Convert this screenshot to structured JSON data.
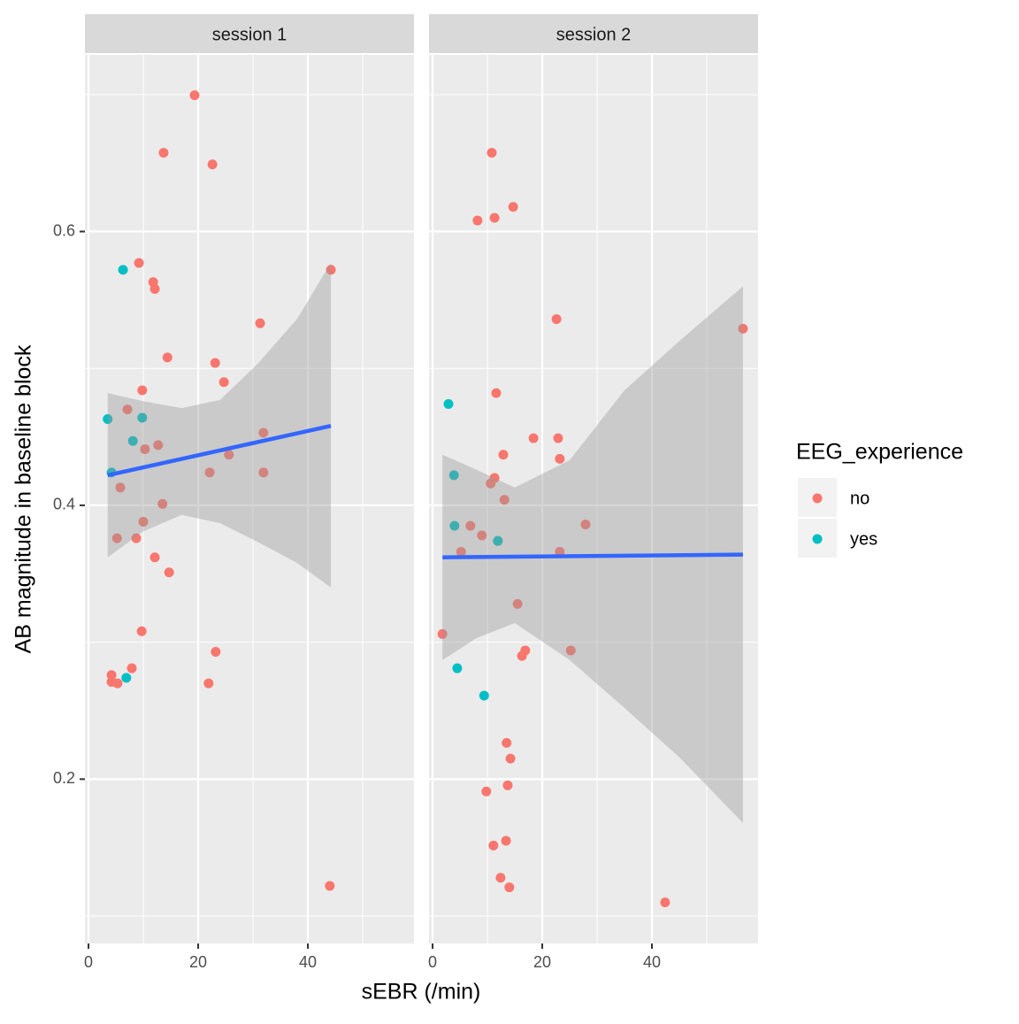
{
  "chart_data": {
    "type": "scatter",
    "x_label": "sEBR (/min)",
    "y_label": "AB magnitude in baseline block",
    "legend_title": "EEG_experience",
    "legend_position": "right",
    "groups": [
      {
        "name": "no",
        "color": "#F8766D"
      },
      {
        "name": "yes",
        "color": "#00BFC4"
      }
    ],
    "fit_color": "#3366FF",
    "xlim": [
      -0.65,
      59.35
    ],
    "ylim": [
      0.08,
      0.729
    ],
    "xticks": [
      0,
      20,
      40
    ],
    "yticks": [
      0.2,
      0.4,
      0.6
    ],
    "minor_xticks": [
      10,
      30,
      50
    ],
    "minor_yticks": [
      0.1,
      0.3,
      0.5,
      0.7
    ],
    "grid": true,
    "facets": [
      {
        "title": "session 1",
        "series": [
          {
            "x": [
              19.35,
              13.7,
              22.6,
              9.2,
              11.8,
              12.1,
              44.2,
              31.3,
              14.4,
              23.1,
              24.7,
              9.8,
              7.1,
              31.9,
              12.7,
              10.3,
              25.6,
              22.1,
              31.9,
              5.8,
              13.5,
              10.0,
              5.2,
              8.7,
              12.1,
              14.7,
              9.7,
              23.2,
              7.9,
              4.2,
              4.2,
              5.3,
              21.9,
              44.0
            ],
            "values": [
              0.6995,
              0.6575,
              0.649,
              0.577,
              0.563,
              0.558,
              0.572,
              0.533,
              0.508,
              0.504,
              0.49,
              0.484,
              0.47,
              0.453,
              0.444,
              0.441,
              0.437,
              0.424,
              0.424,
              0.413,
              0.401,
              0.388,
              0.376,
              0.376,
              0.362,
              0.351,
              0.308,
              0.293,
              0.281,
              0.276,
              0.271,
              0.27,
              0.27,
              0.122
            ]
          },
          {
            "x": [
              6.3,
              3.5,
              9.8,
              8.1,
              4.2,
              6.9
            ],
            "values": [
              0.572,
              0.463,
              0.464,
              0.447,
              0.424,
              0.274
            ]
          }
        ],
        "fit": {
          "x": [
            3.5,
            44.2
          ],
          "values": [
            0.422,
            0.458
          ]
        },
        "band": {
          "x": [
            3.5,
            10,
            17,
            24,
            31,
            38,
            44.2
          ],
          "upper": [
            0.482,
            0.476,
            0.471,
            0.477,
            0.504,
            0.536,
            0.577
          ],
          "lower": [
            0.362,
            0.381,
            0.393,
            0.387,
            0.373,
            0.358,
            0.34
          ]
        }
      },
      {
        "title": "session 2",
        "series": [
          {
            "x": [
              10.8,
              8.2,
              11.3,
              14.7,
              22.6,
              56.6,
              11.6,
              18.4,
              22.9,
              12.9,
              23.2,
              11.3,
              10.6,
              13.1,
              27.9,
              6.9,
              9.0,
              11.9,
              5.2,
              23.2,
              15.5,
              1.8,
              16.9,
              16.3,
              25.2,
              13.5,
              14.2,
              13.7,
              9.8,
              13.4,
              11.1,
              12.4,
              14.0,
              42.4
            ],
            "values": [
              0.6575,
              0.608,
              0.61,
              0.618,
              0.536,
              0.529,
              0.482,
              0.449,
              0.449,
              0.437,
              0.434,
              0.42,
              0.416,
              0.404,
              0.386,
              0.385,
              0.378,
              0.374,
              0.366,
              0.366,
              0.328,
              0.306,
              0.294,
              0.29,
              0.294,
              0.2265,
              0.215,
              0.1955,
              0.191,
              0.155,
              0.1515,
              0.128,
              0.121,
              0.11
            ]
          },
          {
            "x": [
              2.9,
              3.9,
              4.0,
              11.9,
              4.5,
              9.4
            ],
            "values": [
              0.474,
              0.422,
              0.385,
              0.374,
              0.281,
              0.261
            ]
          }
        ],
        "fit": {
          "x": [
            1.8,
            56.6
          ],
          "values": [
            0.362,
            0.364
          ]
        },
        "band": {
          "x": [
            1.8,
            8,
            15,
            25,
            35,
            45,
            56.6
          ],
          "upper": [
            0.437,
            0.426,
            0.413,
            0.433,
            0.484,
            0.52,
            0.56
          ],
          "lower": [
            0.287,
            0.303,
            0.314,
            0.287,
            0.252,
            0.216,
            0.168
          ]
        }
      }
    ]
  }
}
